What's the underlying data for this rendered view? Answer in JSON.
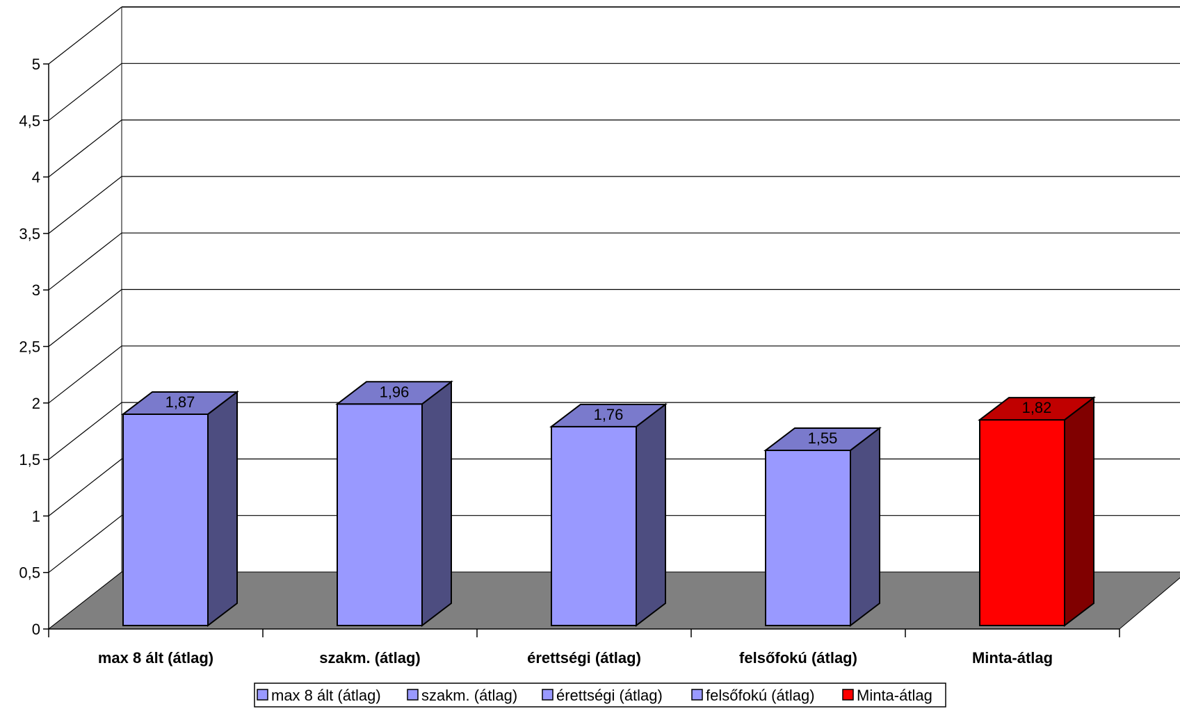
{
  "chart_data": {
    "type": "bar",
    "three_d": true,
    "categories": [
      "max 8 ált (átlag)",
      "szakm. (átlag)",
      "érettségi (átlag)",
      "felsőfokú (átlag)",
      "Minta-átlag"
    ],
    "values": [
      1.87,
      1.96,
      1.76,
      1.55,
      1.82
    ],
    "value_labels": [
      "1,87",
      "1,96",
      "1,76",
      "1,55",
      "1,82"
    ],
    "series": [
      {
        "name": "max 8 ált (átlag)",
        "values": [
          1.87,
          null,
          null,
          null,
          null
        ],
        "color": "#9999ff",
        "side_color": "#4d4d80",
        "top_color": "#7a7acc"
      },
      {
        "name": "szakm. (átlag)",
        "values": [
          null,
          1.96,
          null,
          null,
          null
        ],
        "color": "#9999ff",
        "side_color": "#4d4d80",
        "top_color": "#7a7acc"
      },
      {
        "name": "érettségi (átlag)",
        "values": [
          null,
          null,
          1.76,
          null,
          null
        ],
        "color": "#9999ff",
        "side_color": "#4d4d80",
        "top_color": "#7a7acc"
      },
      {
        "name": "felsőfokú (átlag)",
        "values": [
          null,
          null,
          null,
          1.55,
          null
        ],
        "color": "#9999ff",
        "side_color": "#4d4d80",
        "top_color": "#7a7acc"
      },
      {
        "name": "Minta-átlag",
        "values": [
          null,
          null,
          null,
          null,
          1.82
        ],
        "color": "#ff0000",
        "side_color": "#800000",
        "top_color": "#c00000"
      }
    ],
    "ylim": [
      0,
      5
    ],
    "yticks": [
      0,
      0.5,
      1,
      1.5,
      2,
      2.5,
      3,
      3.5,
      4,
      4.5,
      5
    ],
    "ytick_labels": [
      "0",
      "0,5",
      "1",
      "1,5",
      "2",
      "2,5",
      "3",
      "3,5",
      "4",
      "4,5",
      "5"
    ],
    "grid": true,
    "legend_position": "bottom",
    "floor_color": "#808080",
    "gridline_color": "#000000"
  }
}
